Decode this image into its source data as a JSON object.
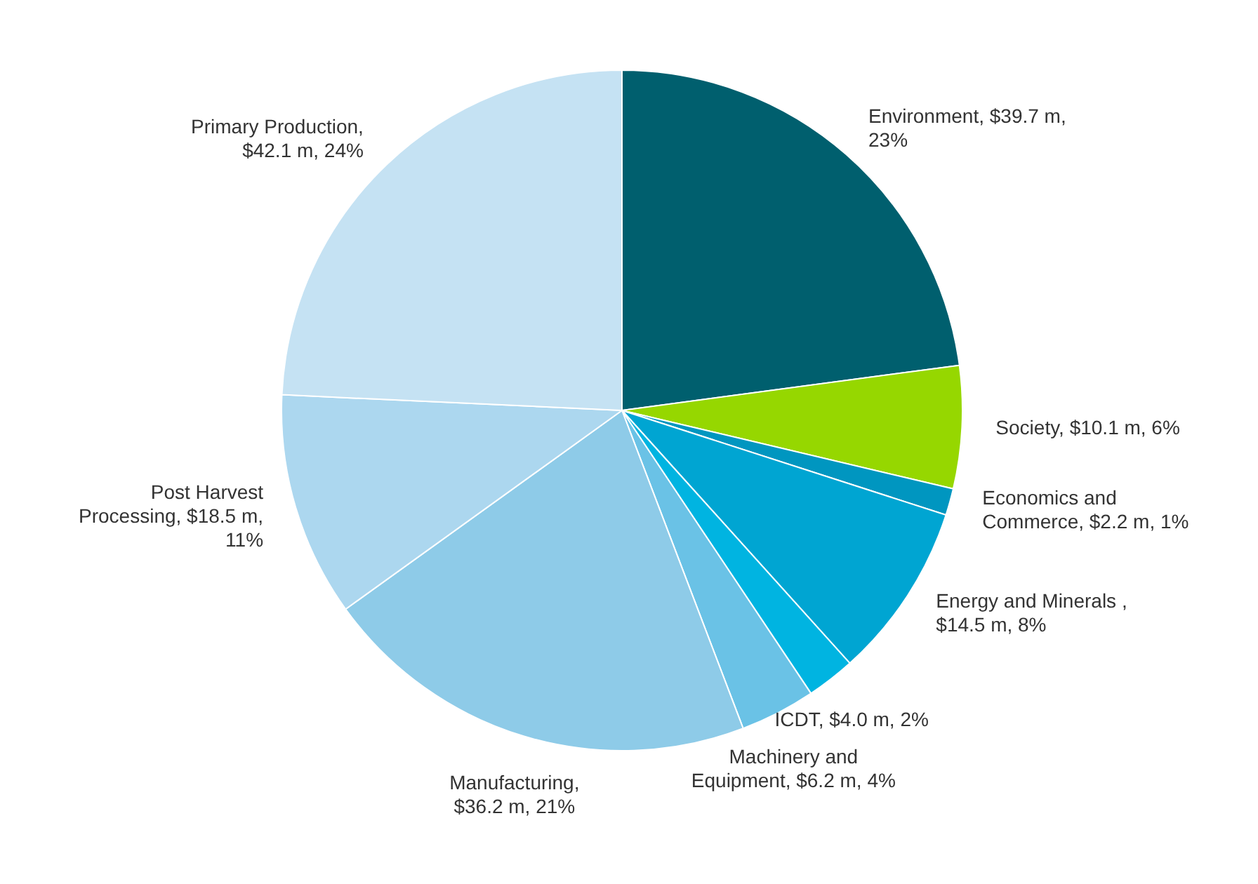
{
  "chart_data": {
    "type": "pie",
    "categories": [
      "Environment, $39.7 m, 23%",
      "Society, $10.1 m, 6%",
      "Economics and Commerce, $2.2 m, 1%",
      "Energy and Minerals , $14.5 m, 8%",
      "ICDT, $4.0 m, 2%",
      "Machinery and Equipment, $6.2 m, 4%",
      "Manufacturing, $36.2 m, 21%",
      "Post Harvest Processing, $18.5 m, 11%",
      "Primary Production, $42.1 m, 24%"
    ],
    "values": [
      39.7,
      10.1,
      2.2,
      14.5,
      4.0,
      6.2,
      36.2,
      18.5,
      42.1
    ],
    "colors": [
      "#005f6e",
      "#96d700",
      "#0096c0",
      "#00a5d2",
      "#00b4e1",
      "#6ac2e6",
      "#8ecbe8",
      "#acd7ef",
      "#c5e2f3"
    ],
    "legend": false
  }
}
